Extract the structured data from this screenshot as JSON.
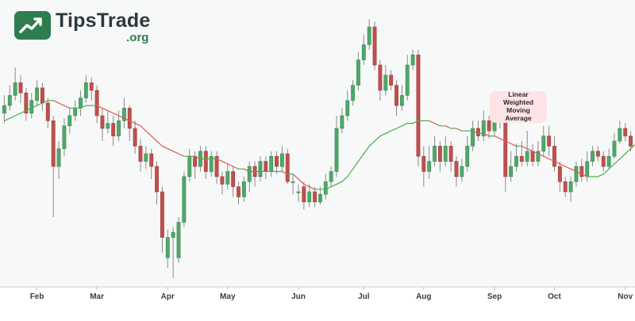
{
  "logo": {
    "name": "TipsTrade",
    "sub": ".org"
  },
  "annotation": {
    "text": "Linear\nWeighted\nMoving\nAverage"
  },
  "colors": {
    "background": "#ffffff",
    "plot_background": "#f7f8f8",
    "up": "#4fa86a",
    "down": "#c0504d",
    "ma_rising": "#4caf50",
    "ma_falling": "#e05a5a",
    "logo": "#2e7d4f",
    "annotation_bg": "#fde3e6"
  },
  "chart_data": {
    "type": "candlestick",
    "title": "",
    "xlabel": "",
    "ylabel": "",
    "ylim": [
      0,
      100
    ],
    "grid": false,
    "x_ticks": [
      {
        "label": "Feb",
        "index": 6
      },
      {
        "label": "Mar",
        "index": 17
      },
      {
        "label": "Apr",
        "index": 30
      },
      {
        "label": "May",
        "index": 41
      },
      {
        "label": "Jun",
        "index": 54
      },
      {
        "label": "Jul",
        "index": 66
      },
      {
        "label": "Aug",
        "index": 77
      },
      {
        "label": "Sep",
        "index": 90
      },
      {
        "label": "Oct",
        "index": 101
      },
      {
        "label": "Nov",
        "index": 114
      }
    ],
    "candles": [
      {
        "o": 61,
        "c": 64,
        "h": 68,
        "l": 57
      },
      {
        "o": 64,
        "c": 68,
        "h": 72,
        "l": 62
      },
      {
        "o": 68,
        "c": 73,
        "h": 79,
        "l": 66
      },
      {
        "o": 73,
        "c": 69,
        "h": 76,
        "l": 65
      },
      {
        "o": 69,
        "c": 61,
        "h": 71,
        "l": 58
      },
      {
        "o": 61,
        "c": 66,
        "h": 69,
        "l": 59
      },
      {
        "o": 66,
        "c": 71,
        "h": 74,
        "l": 64
      },
      {
        "o": 71,
        "c": 65,
        "h": 73,
        "l": 62
      },
      {
        "o": 65,
        "c": 58,
        "h": 67,
        "l": 55
      },
      {
        "o": 58,
        "c": 40,
        "h": 60,
        "l": 20
      },
      {
        "o": 40,
        "c": 47,
        "h": 50,
        "l": 35
      },
      {
        "o": 47,
        "c": 56,
        "h": 59,
        "l": 44
      },
      {
        "o": 56,
        "c": 60,
        "h": 63,
        "l": 53
      },
      {
        "o": 60,
        "c": 63,
        "h": 66,
        "l": 58
      },
      {
        "o": 63,
        "c": 67,
        "h": 70,
        "l": 60
      },
      {
        "o": 67,
        "c": 73,
        "h": 76,
        "l": 65
      },
      {
        "o": 73,
        "c": 70,
        "h": 75,
        "l": 66
      },
      {
        "o": 70,
        "c": 60,
        "h": 72,
        "l": 57
      },
      {
        "o": 60,
        "c": 55,
        "h": 63,
        "l": 50
      },
      {
        "o": 55,
        "c": 57,
        "h": 62,
        "l": 53
      },
      {
        "o": 57,
        "c": 52,
        "h": 60,
        "l": 48
      },
      {
        "o": 52,
        "c": 58,
        "h": 62,
        "l": 50
      },
      {
        "o": 58,
        "c": 63,
        "h": 67,
        "l": 55
      },
      {
        "o": 63,
        "c": 55,
        "h": 64,
        "l": 50
      },
      {
        "o": 55,
        "c": 48,
        "h": 58,
        "l": 45
      },
      {
        "o": 48,
        "c": 42,
        "h": 51,
        "l": 38
      },
      {
        "o": 42,
        "c": 45,
        "h": 48,
        "l": 39
      },
      {
        "o": 45,
        "c": 40,
        "h": 47,
        "l": 35
      },
      {
        "o": 40,
        "c": 30,
        "h": 42,
        "l": 25
      },
      {
        "o": 30,
        "c": 12,
        "h": 32,
        "l": 6
      },
      {
        "o": 4,
        "c": 12,
        "h": 15,
        "l": 0
      },
      {
        "o": 12,
        "c": 14,
        "h": 16,
        "l": -4
      },
      {
        "o": 4,
        "c": 18,
        "h": 20,
        "l": 2
      },
      {
        "o": 18,
        "c": 36,
        "h": 38,
        "l": 16
      },
      {
        "o": 36,
        "c": 44,
        "h": 47,
        "l": 34
      },
      {
        "o": 44,
        "c": 40,
        "h": 46,
        "l": 35
      },
      {
        "o": 40,
        "c": 46,
        "h": 48,
        "l": 38
      },
      {
        "o": 46,
        "c": 38,
        "h": 48,
        "l": 35
      },
      {
        "o": 38,
        "c": 44,
        "h": 46,
        "l": 36
      },
      {
        "o": 44,
        "c": 36,
        "h": 46,
        "l": 33
      },
      {
        "o": 36,
        "c": 33,
        "h": 38,
        "l": 29
      },
      {
        "o": 33,
        "c": 38,
        "h": 41,
        "l": 31
      },
      {
        "o": 38,
        "c": 32,
        "h": 40,
        "l": 28
      },
      {
        "o": 32,
        "c": 28,
        "h": 34,
        "l": 25
      },
      {
        "o": 28,
        "c": 34,
        "h": 36,
        "l": 26
      },
      {
        "o": 34,
        "c": 40,
        "h": 42,
        "l": 30
      },
      {
        "o": 40,
        "c": 36,
        "h": 42,
        "l": 32
      },
      {
        "o": 36,
        "c": 42,
        "h": 44,
        "l": 34
      },
      {
        "o": 42,
        "c": 38,
        "h": 44,
        "l": 35
      },
      {
        "o": 38,
        "c": 44,
        "h": 46,
        "l": 36
      },
      {
        "o": 44,
        "c": 40,
        "h": 46,
        "l": 37
      },
      {
        "o": 40,
        "c": 45,
        "h": 48,
        "l": 38
      },
      {
        "o": 45,
        "c": 34,
        "h": 47,
        "l": 33
      },
      {
        "o": 34,
        "c": 34,
        "h": 37,
        "l": 29
      },
      {
        "o": 30,
        "c": 30,
        "h": 33,
        "l": 26
      },
      {
        "o": 32,
        "c": 26,
        "h": 34,
        "l": 23
      },
      {
        "o": 26,
        "c": 30,
        "h": 33,
        "l": 24
      },
      {
        "o": 30,
        "c": 26,
        "h": 32,
        "l": 24
      },
      {
        "o": 26,
        "c": 29,
        "h": 32,
        "l": 25
      },
      {
        "o": 29,
        "c": 34,
        "h": 37,
        "l": 27
      },
      {
        "o": 34,
        "c": 38,
        "h": 40,
        "l": 32
      },
      {
        "o": 38,
        "c": 55,
        "h": 60,
        "l": 36
      },
      {
        "o": 55,
        "c": 60,
        "h": 63,
        "l": 53
      },
      {
        "o": 60,
        "c": 66,
        "h": 70,
        "l": 58
      },
      {
        "o": 66,
        "c": 72,
        "h": 74,
        "l": 64
      },
      {
        "o": 72,
        "c": 82,
        "h": 85,
        "l": 70
      },
      {
        "o": 82,
        "c": 88,
        "h": 92,
        "l": 80
      },
      {
        "o": 88,
        "c": 95,
        "h": 98,
        "l": 86
      },
      {
        "o": 95,
        "c": 80,
        "h": 97,
        "l": 78
      },
      {
        "o": 80,
        "c": 70,
        "h": 82,
        "l": 66
      },
      {
        "o": 70,
        "c": 76,
        "h": 80,
        "l": 68
      },
      {
        "o": 76,
        "c": 72,
        "h": 78,
        "l": 70
      },
      {
        "o": 72,
        "c": 64,
        "h": 74,
        "l": 60
      },
      {
        "o": 64,
        "c": 68,
        "h": 72,
        "l": 62
      },
      {
        "o": 68,
        "c": 80,
        "h": 84,
        "l": 66
      },
      {
        "o": 80,
        "c": 84,
        "h": 86,
        "l": 78
      },
      {
        "o": 84,
        "c": 44,
        "h": 86,
        "l": 40
      },
      {
        "o": 44,
        "c": 38,
        "h": 48,
        "l": 32
      },
      {
        "o": 38,
        "c": 42,
        "h": 48,
        "l": 35
      },
      {
        "o": 42,
        "c": 48,
        "h": 52,
        "l": 40
      },
      {
        "o": 48,
        "c": 42,
        "h": 50,
        "l": 38
      },
      {
        "o": 42,
        "c": 48,
        "h": 52,
        "l": 40
      },
      {
        "o": 48,
        "c": 42,
        "h": 50,
        "l": 38
      },
      {
        "o": 42,
        "c": 36,
        "h": 44,
        "l": 32
      },
      {
        "o": 36,
        "c": 40,
        "h": 43,
        "l": 34
      },
      {
        "o": 40,
        "c": 48,
        "h": 52,
        "l": 38
      },
      {
        "o": 48,
        "c": 55,
        "h": 58,
        "l": 46
      },
      {
        "o": 55,
        "c": 52,
        "h": 58,
        "l": 50
      },
      {
        "o": 52,
        "c": 58,
        "h": 62,
        "l": 50
      },
      {
        "o": 58,
        "c": 54,
        "h": 60,
        "l": 51
      },
      {
        "o": 54,
        "c": 60,
        "h": 63,
        "l": 52
      },
      {
        "o": 60,
        "c": 58,
        "h": 62,
        "l": 55
      },
      {
        "o": 58,
        "c": 36,
        "h": 60,
        "l": 30
      },
      {
        "o": 36,
        "c": 40,
        "h": 46,
        "l": 34
      },
      {
        "o": 40,
        "c": 44,
        "h": 49,
        "l": 38
      },
      {
        "o": 44,
        "c": 42,
        "h": 50,
        "l": 40
      },
      {
        "o": 42,
        "c": 46,
        "h": 54,
        "l": 40
      },
      {
        "o": 46,
        "c": 42,
        "h": 49,
        "l": 40
      },
      {
        "o": 42,
        "c": 46,
        "h": 50,
        "l": 40
      },
      {
        "o": 46,
        "c": 52,
        "h": 56,
        "l": 44
      },
      {
        "o": 52,
        "c": 48,
        "h": 56,
        "l": 44
      },
      {
        "o": 48,
        "c": 40,
        "h": 52,
        "l": 38
      },
      {
        "o": 40,
        "c": 34,
        "h": 42,
        "l": 30
      },
      {
        "o": 34,
        "c": 30,
        "h": 36,
        "l": 28
      },
      {
        "o": 30,
        "c": 34,
        "h": 36,
        "l": 26
      },
      {
        "o": 34,
        "c": 40,
        "h": 42,
        "l": 32
      },
      {
        "o": 40,
        "c": 36,
        "h": 43,
        "l": 34
      },
      {
        "o": 36,
        "c": 42,
        "h": 46,
        "l": 34
      },
      {
        "o": 42,
        "c": 46,
        "h": 48,
        "l": 40
      },
      {
        "o": 46,
        "c": 44,
        "h": 48,
        "l": 42
      },
      {
        "o": 44,
        "c": 40,
        "h": 46,
        "l": 38
      },
      {
        "o": 40,
        "c": 44,
        "h": 47,
        "l": 39
      },
      {
        "o": 44,
        "c": 50,
        "h": 53,
        "l": 43
      },
      {
        "o": 50,
        "c": 55,
        "h": 58,
        "l": 49
      },
      {
        "o": 55,
        "c": 52,
        "h": 57,
        "l": 50
      },
      {
        "o": 52,
        "c": 48,
        "h": 54,
        "l": 46
      }
    ],
    "moving_average": {
      "name": "Linear Weighted Moving Average",
      "values": [
        58,
        59,
        60,
        61,
        62,
        63,
        64,
        65,
        66,
        66,
        65,
        64,
        63,
        63,
        63,
        64,
        64,
        64,
        63,
        62,
        61,
        60,
        59,
        58,
        57,
        56,
        54,
        52,
        50,
        48,
        47,
        46,
        45,
        44,
        44,
        44,
        43,
        43,
        43,
        43,
        42,
        41,
        40,
        39,
        39,
        38,
        38,
        38,
        38,
        38,
        38,
        38,
        37,
        37,
        35,
        33,
        32,
        31,
        31,
        31,
        32,
        33,
        34,
        36,
        39,
        42,
        45,
        48,
        50,
        52,
        53,
        54,
        55,
        56,
        57,
        57,
        58,
        58,
        58,
        57,
        56,
        56,
        55,
        55,
        54,
        54,
        54,
        53,
        53,
        52,
        52,
        51,
        50,
        49,
        48,
        48,
        47,
        46,
        45,
        44,
        43,
        42,
        41,
        40,
        39,
        38,
        37,
        36,
        36,
        36,
        37,
        39,
        41,
        43,
        45,
        47,
        49,
        51
      ]
    }
  }
}
